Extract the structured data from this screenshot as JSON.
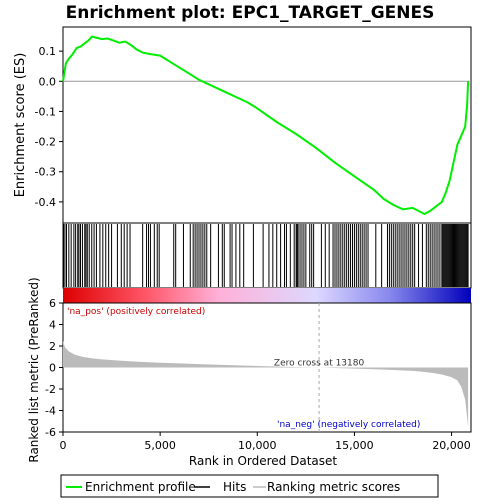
{
  "chart_data": {
    "type": "line",
    "title": "Enrichment plot: EPC1_TARGET_GENES",
    "top_panel": {
      "ylabel": "Enrichment score (ES)",
      "ylim": [
        -0.47,
        0.18
      ],
      "yticks": [
        0.1,
        0.0,
        -0.1,
        -0.2,
        -0.3,
        -0.4
      ],
      "ytick_labels": [
        "0.1",
        "0.0",
        "-0.1",
        "-0.2",
        "-0.3",
        "-0.4"
      ],
      "grid": false,
      "zero_line": true,
      "line_color": "#00ee00",
      "series": [
        {
          "name": "Enrichment profile",
          "x": [
            0,
            150,
            300,
            500,
            700,
            900,
            1100,
            1300,
            1500,
            1700,
            2000,
            2300,
            2600,
            2900,
            3200,
            3500,
            3800,
            4100,
            4500,
            5000,
            5500,
            6000,
            6500,
            7000,
            7500,
            8000,
            8500,
            9000,
            9500,
            10000,
            11000,
            12000,
            13000,
            14000,
            15000,
            16000,
            16500,
            17000,
            17500,
            18000,
            18300,
            18600,
            18900,
            19200,
            19500,
            19700,
            19900,
            20100,
            20300,
            20500,
            20700,
            20800,
            20850
          ],
          "y": [
            0.0,
            0.06,
            0.075,
            0.09,
            0.11,
            0.115,
            0.125,
            0.135,
            0.148,
            0.145,
            0.14,
            0.142,
            0.135,
            0.128,
            0.132,
            0.12,
            0.105,
            0.095,
            0.09,
            0.085,
            0.065,
            0.045,
            0.025,
            0.005,
            -0.01,
            -0.025,
            -0.04,
            -0.055,
            -0.07,
            -0.09,
            -0.135,
            -0.175,
            -0.22,
            -0.27,
            -0.315,
            -0.36,
            -0.39,
            -0.41,
            -0.425,
            -0.42,
            -0.43,
            -0.44,
            -0.43,
            -0.415,
            -0.4,
            -0.37,
            -0.33,
            -0.27,
            -0.21,
            -0.18,
            -0.15,
            -0.08,
            0.0
          ]
        }
      ]
    },
    "hits": [
      30,
      100,
      180,
      300,
      420,
      560,
      650,
      760,
      820,
      900,
      1000,
      1120,
      1180,
      1250,
      1350,
      1480,
      1600,
      1720,
      1900,
      2050,
      2200,
      2350,
      2500,
      2800,
      3000,
      3150,
      3300,
      3450,
      4100,
      4300,
      4400,
      4500,
      4700,
      4850,
      4950,
      5700,
      5800,
      6200,
      6550,
      6700,
      6800,
      6900,
      7000,
      7100,
      7200,
      7300,
      7400,
      7600,
      8000,
      8200,
      8300,
      8600,
      8700,
      8900,
      9100,
      9300,
      9800,
      10300,
      10600,
      10800,
      11000,
      11200,
      11400,
      11500,
      11700,
      11900,
      12000,
      12050,
      12100,
      12200,
      12300,
      12400,
      12500,
      12700,
      12800,
      12900,
      13300,
      13500,
      13700,
      13900,
      14000,
      14100,
      14200,
      14300,
      14400,
      14500,
      14600,
      14700,
      14800,
      14900,
      15000,
      15100,
      15200,
      15300,
      15400,
      15500,
      15600,
      15700,
      16100,
      16400,
      16700,
      16800,
      16900,
      17000,
      17100,
      17200,
      17300,
      17400,
      17500,
      17600,
      17700,
      17800,
      17900,
      18000,
      18100,
      18300,
      18500,
      18700,
      18800,
      18900,
      19000,
      19100,
      19200,
      19300,
      19400,
      19500,
      19550,
      19600,
      19650,
      19700,
      19750,
      19800,
      19850,
      19900,
      19950,
      20000,
      20050,
      20100,
      20150,
      20200,
      20250,
      20300,
      20350,
      20400,
      20450,
      20500,
      20550,
      20600,
      20650,
      20700,
      20750,
      20800,
      20850
    ],
    "bottom_panel": {
      "ylabel": "Ranked list metric (PreRanked)",
      "xlabel": "Rank in Ordered Dataset",
      "ylim": [
        -6,
        6
      ],
      "yticks": [
        6,
        4,
        2,
        0,
        -2,
        -4,
        -6
      ],
      "ytick_labels": [
        "6",
        "4",
        "2",
        "0",
        "-2",
        "-4",
        "-6"
      ],
      "xlim": [
        0,
        21000
      ],
      "xticks": [
        0,
        5000,
        10000,
        15000,
        20000
      ],
      "xtick_labels": [
        "0",
        "5,000",
        "10,000",
        "15,000",
        "20,000"
      ],
      "metric_curve": {
        "x": [
          0,
          100,
          300,
          600,
          1000,
          1500,
          2000,
          3000,
          4000,
          5000,
          6000,
          7000,
          8000,
          9000,
          10000,
          11000,
          12000,
          13180,
          14000,
          15000,
          16000,
          17000,
          18000,
          18500,
          19000,
          19500,
          20000,
          20300,
          20500,
          20700,
          20850
        ],
        "y": [
          2.5,
          1.9,
          1.5,
          1.2,
          1.0,
          0.85,
          0.75,
          0.62,
          0.52,
          0.45,
          0.38,
          0.32,
          0.26,
          0.2,
          0.14,
          0.09,
          0.04,
          0.0,
          -0.05,
          -0.1,
          -0.16,
          -0.23,
          -0.32,
          -0.4,
          -0.5,
          -0.65,
          -0.9,
          -1.2,
          -1.8,
          -3.0,
          -5.5
        ]
      },
      "zero_cross_label": "Zero cross at 13180",
      "zero_cross_x": 13180,
      "pos_label": "'na_pos' (positively correlated)",
      "neg_label": "'na_neg' (negatively correlated)",
      "pos_color": "#cc0000",
      "neg_color": "#0000cc"
    },
    "legend": {
      "placement": "bottom",
      "items": [
        {
          "label": "Enrichment profile",
          "color": "#00ee00"
        },
        {
          "label": "Hits",
          "color": "#000000"
        },
        {
          "label": "Ranking metric scores",
          "color": "#bbbbbb"
        }
      ]
    }
  }
}
